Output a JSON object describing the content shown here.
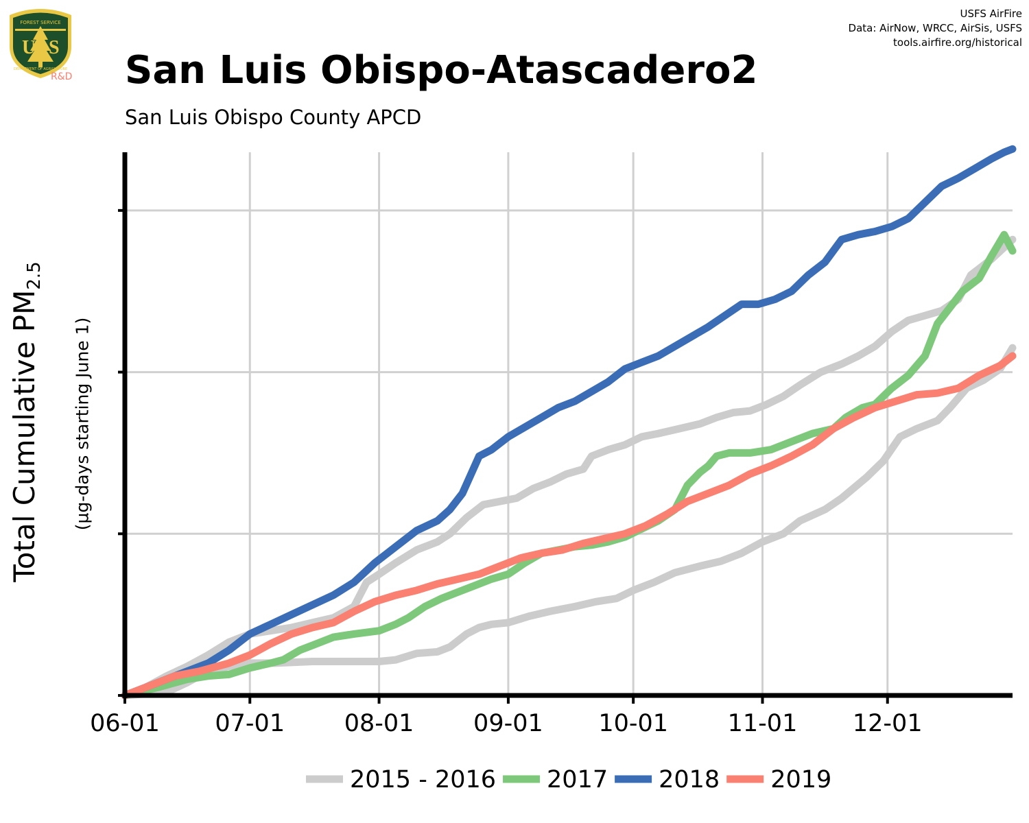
{
  "header": {
    "title": "San Luis Obispo-Atascadero2",
    "subtitle": "San Luis Obispo County APCD",
    "credits": [
      "USFS AirFire",
      "Data: AirNow, WRCC, AirSis, USFS",
      "tools.airfire.org/historical"
    ]
  },
  "logo": {
    "text_top": "FOREST SERVICE",
    "letters": "USA",
    "text_bottom": "DEPARTMENT OF AGRICULTURE",
    "rd": "R&D",
    "colors": {
      "shield": "#1d4f2a",
      "gold": "#e8c845",
      "rd": "#ff7f6e"
    }
  },
  "axes": {
    "ylabel_main": "Total Cumulative PM",
    "ylabel_sub": "2.5",
    "ylabel_note": "(µg-days starting June 1)"
  },
  "chart_data": {
    "type": "line",
    "x_tick_labels": [
      "06-01",
      "07-01",
      "08-01",
      "09-01",
      "10-01",
      "11-01",
      "12-01"
    ],
    "x_tick_days": [
      0,
      30,
      61,
      92,
      122,
      153,
      183
    ],
    "xlim": [
      0,
      213
    ],
    "ylim": [
      0,
      3.36
    ],
    "y_ticks": [
      0,
      1,
      2,
      3
    ],
    "y_tick_labels_visible": false,
    "grid": true,
    "legend_position": "bottom",
    "series": [
      {
        "name": "2015 - 2016",
        "color": "#cccccc",
        "points": [
          [
            0,
            0
          ],
          [
            10,
            0.02
          ],
          [
            15,
            0.08
          ],
          [
            20,
            0.15
          ],
          [
            25,
            0.18
          ],
          [
            30,
            0.2
          ],
          [
            36,
            0.2
          ],
          [
            45,
            0.21
          ],
          [
            55,
            0.21
          ],
          [
            61,
            0.21
          ],
          [
            65,
            0.22
          ],
          [
            70,
            0.26
          ],
          [
            75,
            0.27
          ],
          [
            78,
            0.3
          ],
          [
            82,
            0.38
          ],
          [
            85,
            0.42
          ],
          [
            88,
            0.44
          ],
          [
            92,
            0.45
          ],
          [
            97,
            0.49
          ],
          [
            102,
            0.52
          ],
          [
            108,
            0.55
          ],
          [
            113,
            0.58
          ],
          [
            118,
            0.6
          ],
          [
            122,
            0.65
          ],
          [
            127,
            0.7
          ],
          [
            132,
            0.76
          ],
          [
            138,
            0.8
          ],
          [
            143,
            0.83
          ],
          [
            148,
            0.88
          ],
          [
            153,
            0.95
          ],
          [
            158,
            1.0
          ],
          [
            162,
            1.08
          ],
          [
            168,
            1.15
          ],
          [
            172,
            1.22
          ],
          [
            178,
            1.35
          ],
          [
            182,
            1.45
          ],
          [
            186,
            1.6
          ],
          [
            190,
            1.65
          ],
          [
            195,
            1.7
          ],
          [
            198,
            1.78
          ],
          [
            202,
            1.9
          ],
          [
            206,
            1.95
          ],
          [
            210,
            2.02
          ],
          [
            213,
            2.15
          ]
        ]
      },
      {
        "name": "2015 - 2016",
        "color": "#cccccc",
        "points": [
          [
            0,
            0
          ],
          [
            5,
            0.05
          ],
          [
            10,
            0.12
          ],
          [
            15,
            0.18
          ],
          [
            20,
            0.25
          ],
          [
            25,
            0.33
          ],
          [
            30,
            0.38
          ],
          [
            35,
            0.4
          ],
          [
            40,
            0.42
          ],
          [
            45,
            0.45
          ],
          [
            50,
            0.48
          ],
          [
            55,
            0.55
          ],
          [
            58,
            0.7
          ],
          [
            61,
            0.75
          ],
          [
            65,
            0.82
          ],
          [
            70,
            0.9
          ],
          [
            75,
            0.95
          ],
          [
            78,
            1.0
          ],
          [
            82,
            1.1
          ],
          [
            86,
            1.18
          ],
          [
            90,
            1.2
          ],
          [
            94,
            1.22
          ],
          [
            98,
            1.28
          ],
          [
            102,
            1.32
          ],
          [
            106,
            1.37
          ],
          [
            110,
            1.4
          ],
          [
            112,
            1.48
          ],
          [
            116,
            1.52
          ],
          [
            120,
            1.55
          ],
          [
            124,
            1.6
          ],
          [
            128,
            1.62
          ],
          [
            133,
            1.65
          ],
          [
            138,
            1.68
          ],
          [
            142,
            1.72
          ],
          [
            146,
            1.75
          ],
          [
            150,
            1.76
          ],
          [
            154,
            1.8
          ],
          [
            158,
            1.85
          ],
          [
            162,
            1.92
          ],
          [
            167,
            2.0
          ],
          [
            172,
            2.05
          ],
          [
            176,
            2.1
          ],
          [
            180,
            2.16
          ],
          [
            184,
            2.25
          ],
          [
            188,
            2.32
          ],
          [
            192,
            2.35
          ],
          [
            196,
            2.38
          ],
          [
            200,
            2.45
          ],
          [
            203,
            2.6
          ],
          [
            208,
            2.7
          ],
          [
            213,
            2.82
          ]
        ]
      },
      {
        "name": "2017",
        "color": "#7dc87a",
        "points": [
          [
            0,
            0
          ],
          [
            8,
            0.05
          ],
          [
            15,
            0.1
          ],
          [
            20,
            0.12
          ],
          [
            25,
            0.13
          ],
          [
            30,
            0.17
          ],
          [
            35,
            0.2
          ],
          [
            38,
            0.22
          ],
          [
            42,
            0.28
          ],
          [
            46,
            0.32
          ],
          [
            50,
            0.36
          ],
          [
            55,
            0.38
          ],
          [
            61,
            0.4
          ],
          [
            65,
            0.44
          ],
          [
            68,
            0.48
          ],
          [
            72,
            0.55
          ],
          [
            76,
            0.6
          ],
          [
            80,
            0.64
          ],
          [
            84,
            0.68
          ],
          [
            88,
            0.72
          ],
          [
            92,
            0.75
          ],
          [
            96,
            0.82
          ],
          [
            100,
            0.88
          ],
          [
            104,
            0.9
          ],
          [
            108,
            0.92
          ],
          [
            112,
            0.93
          ],
          [
            116,
            0.95
          ],
          [
            120,
            0.98
          ],
          [
            124,
            1.03
          ],
          [
            128,
            1.08
          ],
          [
            132,
            1.15
          ],
          [
            135,
            1.3
          ],
          [
            138,
            1.38
          ],
          [
            140,
            1.42
          ],
          [
            142,
            1.48
          ],
          [
            145,
            1.5
          ],
          [
            150,
            1.5
          ],
          [
            155,
            1.52
          ],
          [
            160,
            1.57
          ],
          [
            165,
            1.62
          ],
          [
            170,
            1.65
          ],
          [
            173,
            1.72
          ],
          [
            177,
            1.78
          ],
          [
            180,
            1.8
          ],
          [
            184,
            1.9
          ],
          [
            188,
            1.98
          ],
          [
            192,
            2.1
          ],
          [
            195,
            2.3
          ],
          [
            198,
            2.4
          ],
          [
            201,
            2.5
          ],
          [
            205,
            2.58
          ],
          [
            208,
            2.72
          ],
          [
            211,
            2.85
          ],
          [
            213,
            2.75
          ]
        ]
      },
      {
        "name": "2018",
        "color": "#3a6db5",
        "points": [
          [
            0,
            0
          ],
          [
            5,
            0.05
          ],
          [
            10,
            0.1
          ],
          [
            15,
            0.15
          ],
          [
            20,
            0.2
          ],
          [
            25,
            0.28
          ],
          [
            30,
            0.38
          ],
          [
            35,
            0.44
          ],
          [
            40,
            0.5
          ],
          [
            45,
            0.56
          ],
          [
            50,
            0.62
          ],
          [
            55,
            0.7
          ],
          [
            60,
            0.82
          ],
          [
            65,
            0.92
          ],
          [
            70,
            1.02
          ],
          [
            75,
            1.08
          ],
          [
            78,
            1.15
          ],
          [
            81,
            1.25
          ],
          [
            85,
            1.48
          ],
          [
            88,
            1.52
          ],
          [
            92,
            1.6
          ],
          [
            96,
            1.66
          ],
          [
            100,
            1.72
          ],
          [
            104,
            1.78
          ],
          [
            108,
            1.82
          ],
          [
            112,
            1.88
          ],
          [
            116,
            1.94
          ],
          [
            120,
            2.02
          ],
          [
            124,
            2.06
          ],
          [
            128,
            2.1
          ],
          [
            132,
            2.16
          ],
          [
            136,
            2.22
          ],
          [
            140,
            2.28
          ],
          [
            144,
            2.35
          ],
          [
            148,
            2.42
          ],
          [
            152,
            2.42
          ],
          [
            156,
            2.45
          ],
          [
            160,
            2.5
          ],
          [
            164,
            2.6
          ],
          [
            168,
            2.68
          ],
          [
            172,
            2.82
          ],
          [
            176,
            2.85
          ],
          [
            180,
            2.87
          ],
          [
            184,
            2.9
          ],
          [
            188,
            2.95
          ],
          [
            192,
            3.05
          ],
          [
            196,
            3.15
          ],
          [
            200,
            3.2
          ],
          [
            204,
            3.26
          ],
          [
            208,
            3.32
          ],
          [
            211,
            3.36
          ],
          [
            213,
            3.38
          ]
        ]
      },
      {
        "name": "2019",
        "color": "#fa8072",
        "points": [
          [
            0,
            0
          ],
          [
            6,
            0.06
          ],
          [
            12,
            0.12
          ],
          [
            18,
            0.15
          ],
          [
            25,
            0.2
          ],
          [
            30,
            0.25
          ],
          [
            35,
            0.32
          ],
          [
            40,
            0.38
          ],
          [
            45,
            0.42
          ],
          [
            50,
            0.45
          ],
          [
            55,
            0.52
          ],
          [
            60,
            0.58
          ],
          [
            65,
            0.62
          ],
          [
            70,
            0.65
          ],
          [
            75,
            0.69
          ],
          [
            80,
            0.72
          ],
          [
            85,
            0.75
          ],
          [
            90,
            0.8
          ],
          [
            95,
            0.85
          ],
          [
            100,
            0.88
          ],
          [
            105,
            0.9
          ],
          [
            110,
            0.94
          ],
          [
            115,
            0.97
          ],
          [
            120,
            1.0
          ],
          [
            125,
            1.05
          ],
          [
            130,
            1.12
          ],
          [
            135,
            1.2
          ],
          [
            140,
            1.25
          ],
          [
            145,
            1.3
          ],
          [
            150,
            1.37
          ],
          [
            155,
            1.42
          ],
          [
            160,
            1.48
          ],
          [
            165,
            1.55
          ],
          [
            170,
            1.65
          ],
          [
            175,
            1.72
          ],
          [
            180,
            1.78
          ],
          [
            185,
            1.82
          ],
          [
            190,
            1.86
          ],
          [
            195,
            1.87
          ],
          [
            200,
            1.9
          ],
          [
            205,
            1.98
          ],
          [
            210,
            2.04
          ],
          [
            213,
            2.1
          ]
        ]
      }
    ],
    "legend": [
      {
        "label": "2015 - 2016",
        "color": "#cccccc"
      },
      {
        "label": "2017",
        "color": "#7dc87a"
      },
      {
        "label": "2018",
        "color": "#3a6db5"
      },
      {
        "label": "2019",
        "color": "#fa8072"
      }
    ]
  }
}
